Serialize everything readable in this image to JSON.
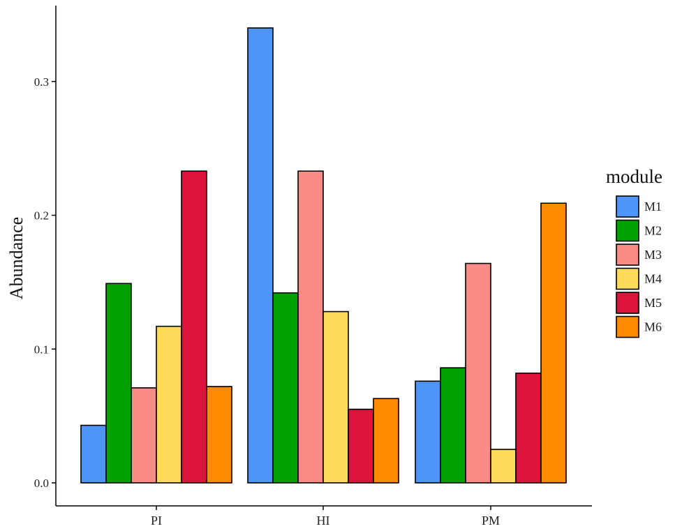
{
  "chart_data": {
    "type": "bar",
    "title": "",
    "xlabel": "",
    "ylabel": "Abundance",
    "ylim": [
      0,
      0.35
    ],
    "yticks": [
      0.0,
      0.1,
      0.2,
      0.3
    ],
    "ytick_labels": [
      "0.0",
      "0.1",
      "0.2",
      "0.3"
    ],
    "grid": false,
    "categories": [
      "PI",
      "HI",
      "PM"
    ],
    "legend": {
      "title": "module",
      "position": "right"
    },
    "series": [
      {
        "name": "M1",
        "color": "#4F94F8",
        "values": [
          0.043,
          0.34,
          0.076
        ]
      },
      {
        "name": "M2",
        "color": "#00A000",
        "values": [
          0.149,
          0.142,
          0.086
        ]
      },
      {
        "name": "M3",
        "color": "#FA8C88",
        "values": [
          0.071,
          0.233,
          0.164
        ]
      },
      {
        "name": "M4",
        "color": "#FFDB5B",
        "values": [
          0.117,
          0.128,
          0.025
        ]
      },
      {
        "name": "M5",
        "color": "#DC143C",
        "values": [
          0.233,
          0.055,
          0.082
        ]
      },
      {
        "name": "M6",
        "color": "#FF8C00",
        "values": [
          0.072,
          0.063,
          0.209
        ]
      }
    ]
  }
}
